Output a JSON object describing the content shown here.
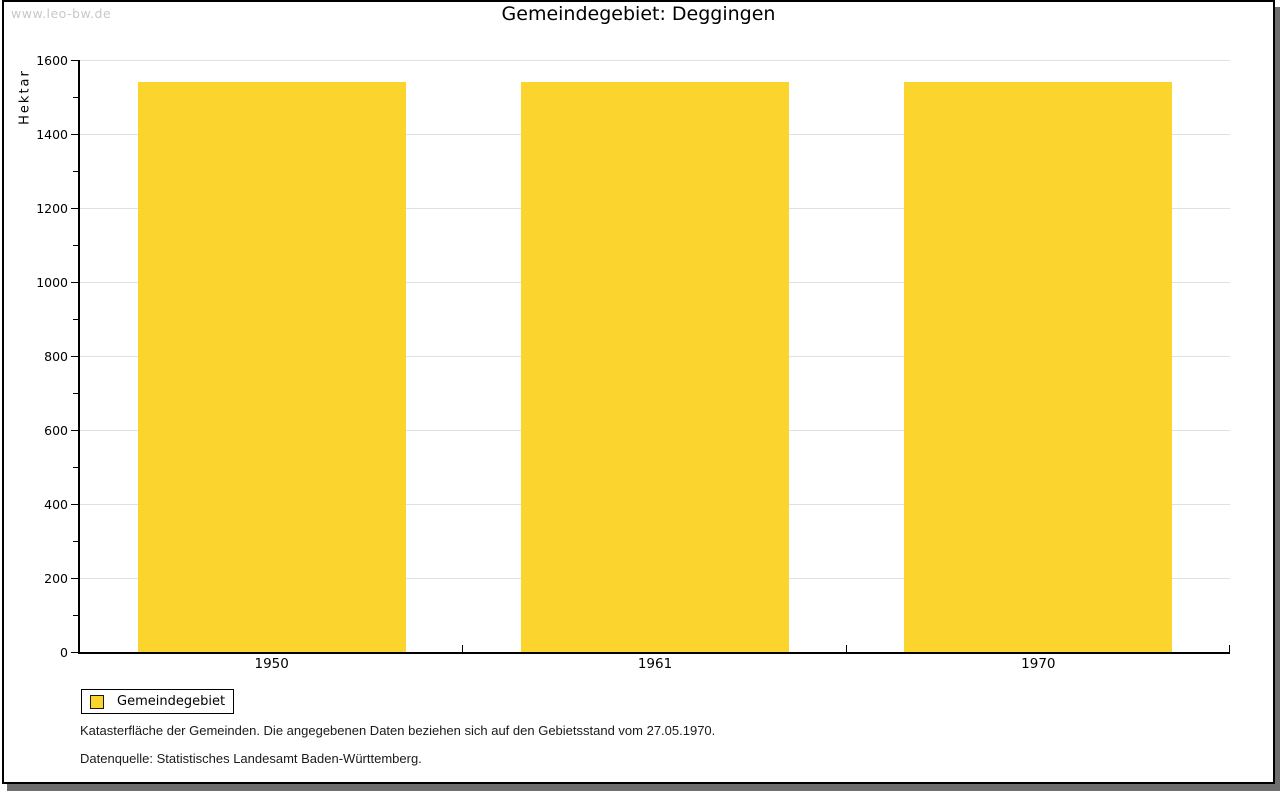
{
  "watermark": "www.leo-bw.de",
  "title": "Gemeindegebiet: Deggingen",
  "legend": {
    "label": "Gemeindegebiet"
  },
  "footer": {
    "line1": "Katasterfläche der Gemeinden. Die angegebenen Daten beziehen sich auf den Gebietsstand vom 27.05.1970.",
    "line2": "Datenquelle: Statistisches Landesamt Baden-Württemberg."
  },
  "chart_data": {
    "type": "bar",
    "title": "Gemeindegebiet: Deggingen",
    "categories": [
      "1950",
      "1961",
      "1970"
    ],
    "series": [
      {
        "name": "Gemeindegebiet",
        "values": [
          1540,
          1540,
          1540
        ],
        "color": "#fcd42e"
      }
    ],
    "xlabel": "",
    "ylabel": "Hektar",
    "ylim": [
      0,
      1600
    ],
    "ytick_major": 200,
    "ytick_minor": 100,
    "grid": "horizontal-major-only",
    "legend_position": "bottom-left",
    "bar_width_fraction": 0.7
  },
  "colors": {
    "bar": "#fcd42e",
    "grid": "#e0e0e0",
    "axis": "#000000",
    "watermark_text": "#c8c8c8",
    "frame_border": "#000000",
    "frame_shadow": "#6e6e6e",
    "background": "#ffffff"
  }
}
